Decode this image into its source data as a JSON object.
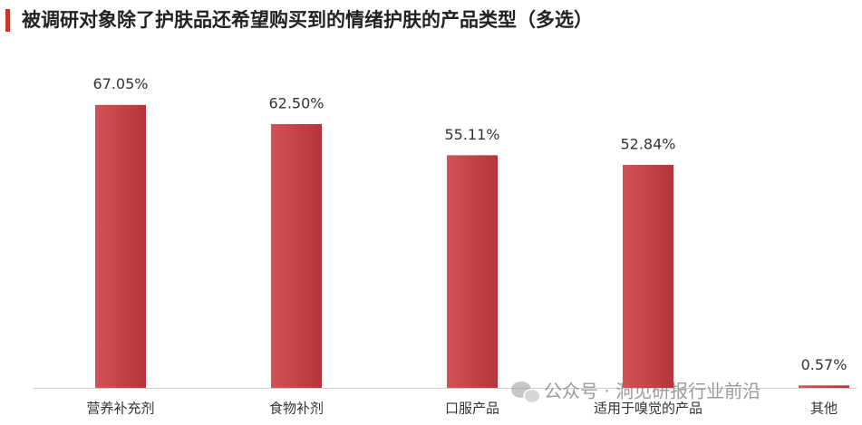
{
  "chart_data": {
    "type": "bar",
    "title": "被调研对象除了护肤品还希望购买到的情绪护肤的产品类型（多选）",
    "categories": [
      "营养补充剂",
      "食物补剂",
      "口服产品",
      "适用于嗅觉的产品",
      "其他"
    ],
    "values": [
      67.05,
      62.5,
      55.11,
      52.84,
      0.57
    ],
    "value_labels": [
      "67.05%",
      "62.50%",
      "55.11%",
      "52.84%",
      "0.57%"
    ],
    "color": "#cc3b42",
    "ylim": [
      0,
      70
    ],
    "watermark": "公众号 · 洞见研报行业前沿"
  }
}
